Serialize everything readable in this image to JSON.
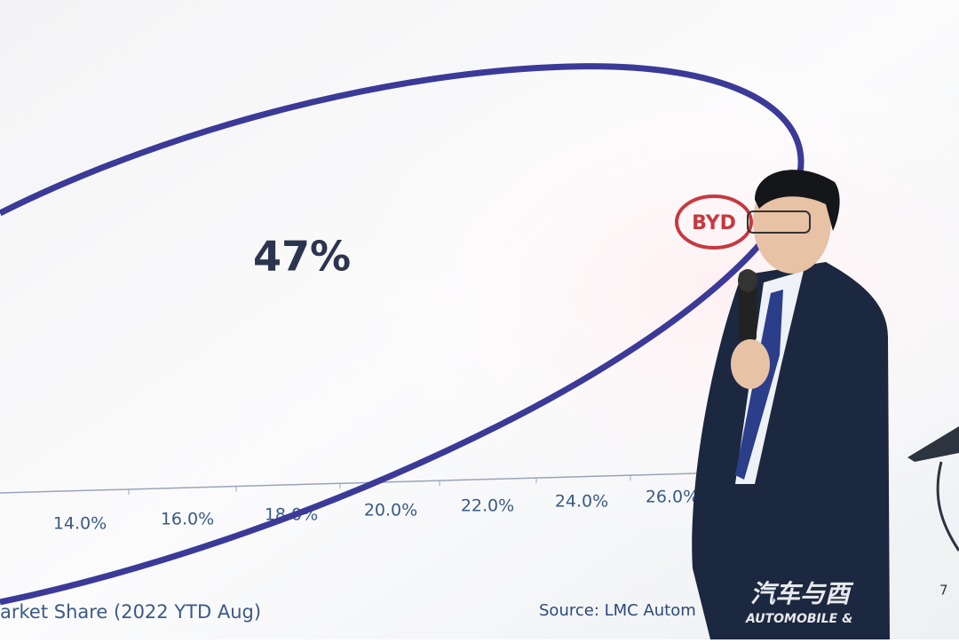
{
  "slide": {
    "highlight": "47%",
    "logo": "BYD",
    "axis_labels": [
      "14.0%",
      "16.0%",
      "18.0%",
      "20.0%",
      "22.0%",
      "24.0%",
      "26.0%"
    ],
    "axis_title": "arket Share (2022 YTD Aug)",
    "source": "Source: LMC Autom",
    "page_number": "7"
  },
  "watermark": {
    "title": "汽车与酉",
    "subtitle": "AUTOMOBILE &"
  }
}
